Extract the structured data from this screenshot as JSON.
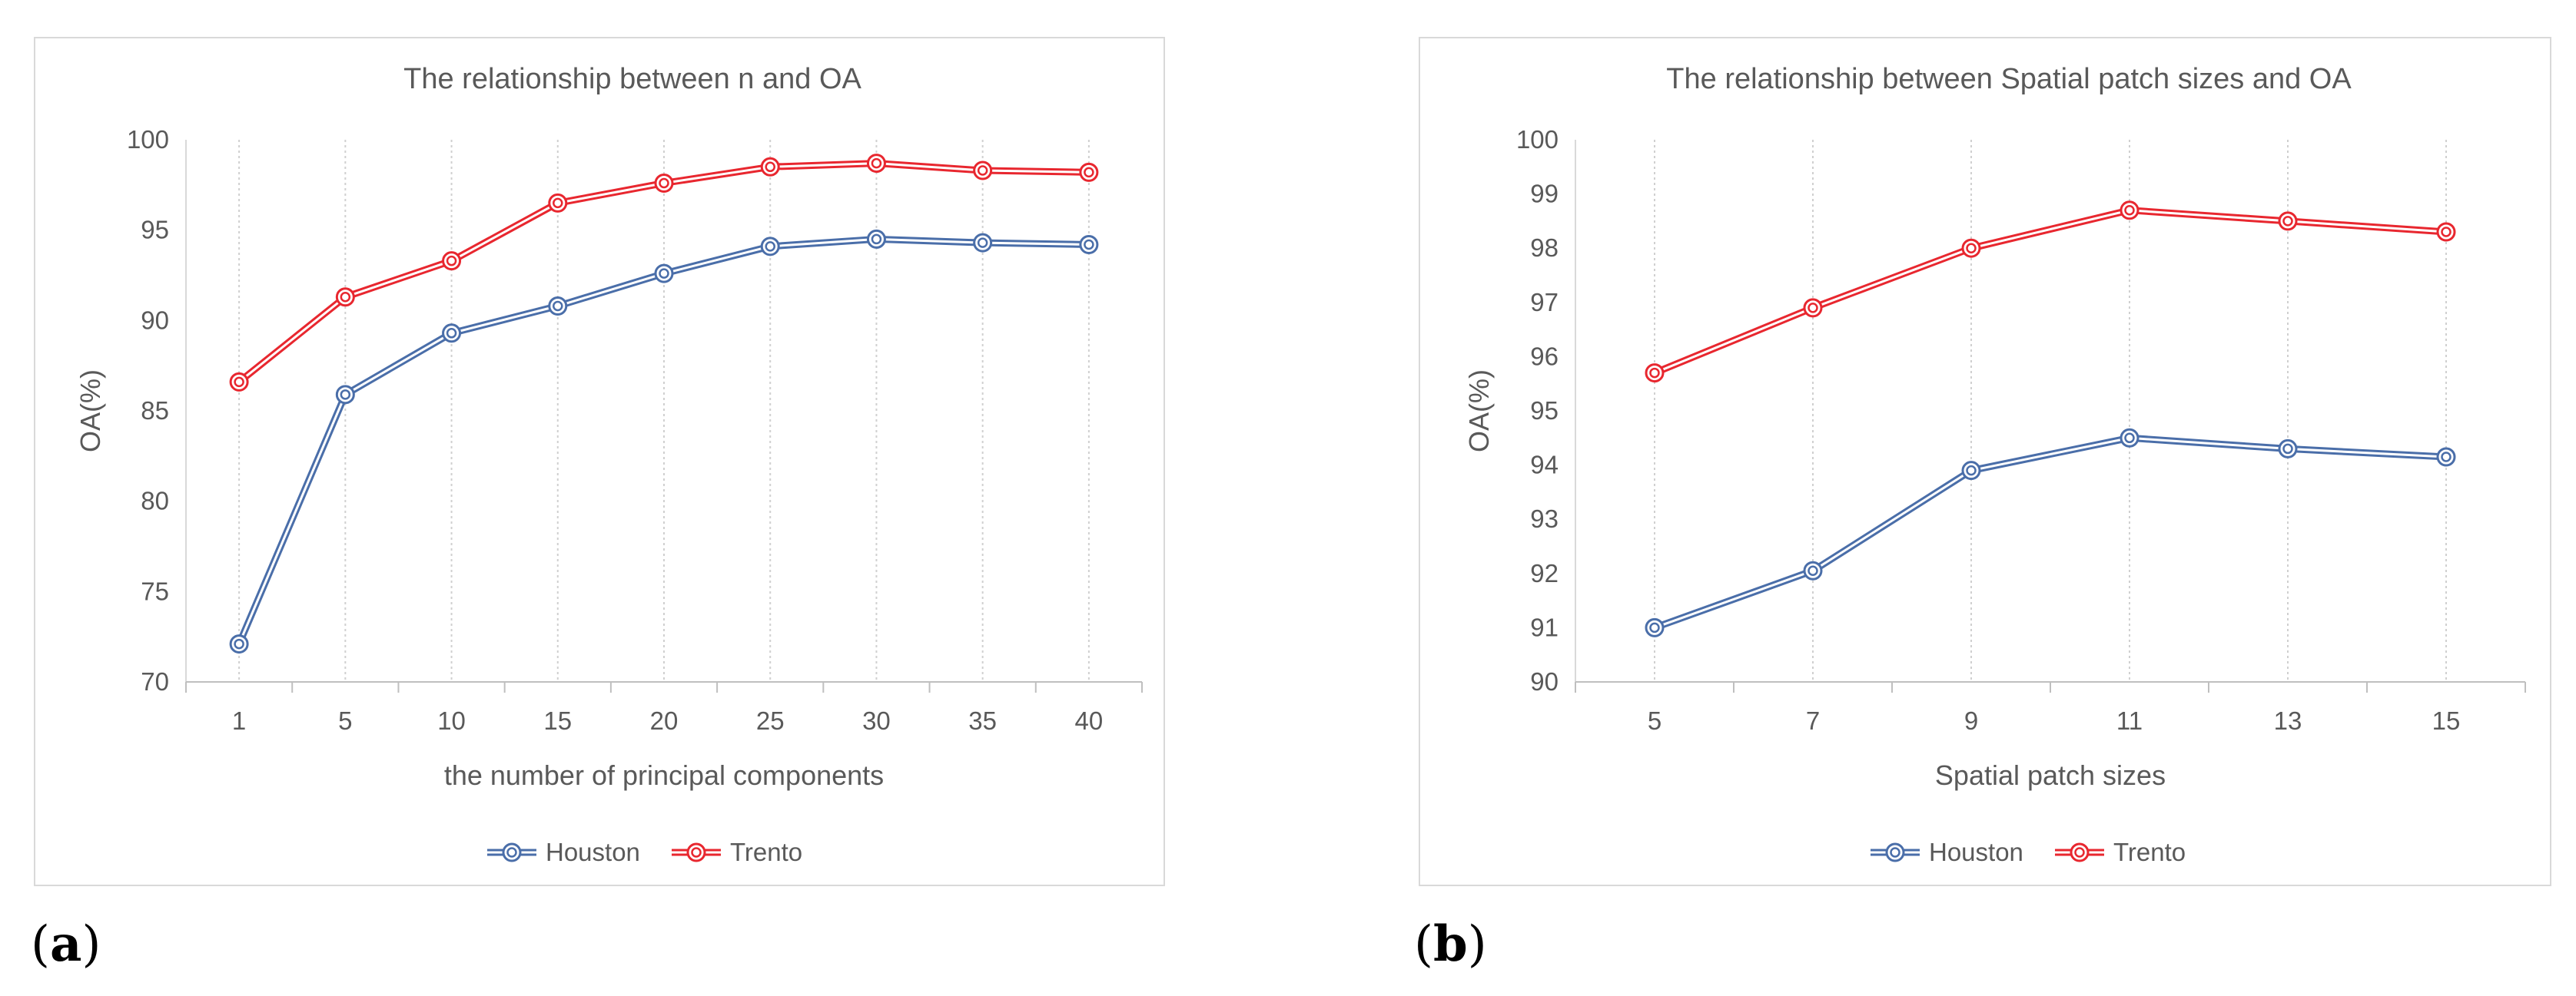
{
  "charts": [
    {
      "id": "a",
      "caption_letter": "a",
      "chart_data": {
        "type": "line",
        "title": "The relationship between n and OA",
        "xlabel": "the number of principal components",
        "ylabel": "OA(%)",
        "categories": [
          "1",
          "5",
          "10",
          "15",
          "20",
          "25",
          "30",
          "35",
          "40"
        ],
        "ylim": [
          70,
          100
        ],
        "yticks": [
          70,
          75,
          80,
          85,
          90,
          95,
          100
        ],
        "series": [
          {
            "name": "Houston",
            "color": "#4a6ea9",
            "values": [
              72.1,
              85.9,
              89.3,
              90.8,
              92.6,
              94.1,
              94.5,
              94.3,
              94.2
            ]
          },
          {
            "name": "Trento",
            "color": "#e8272f",
            "values": [
              86.6,
              91.3,
              93.3,
              96.5,
              97.6,
              98.5,
              98.7,
              98.3,
              98.2
            ]
          }
        ],
        "legend_position": "bottom"
      }
    },
    {
      "id": "b",
      "caption_letter": "b",
      "chart_data": {
        "type": "line",
        "title": "The relationship between Spatial patch sizes and OA",
        "xlabel": "Spatial patch sizes",
        "ylabel": "OA(%)",
        "categories": [
          "5",
          "7",
          "9",
          "11",
          "13",
          "15"
        ],
        "ylim": [
          90,
          100
        ],
        "yticks": [
          90,
          91,
          92,
          93,
          94,
          95,
          96,
          97,
          98,
          99,
          100
        ],
        "series": [
          {
            "name": "Houston",
            "color": "#4a6ea9",
            "values": [
              91.0,
              92.05,
              93.9,
              94.5,
              94.3,
              94.15
            ]
          },
          {
            "name": "Trento",
            "color": "#e8272f",
            "values": [
              95.7,
              96.9,
              98.0,
              98.7,
              98.5,
              98.3
            ]
          }
        ],
        "legend_position": "bottom"
      }
    }
  ]
}
